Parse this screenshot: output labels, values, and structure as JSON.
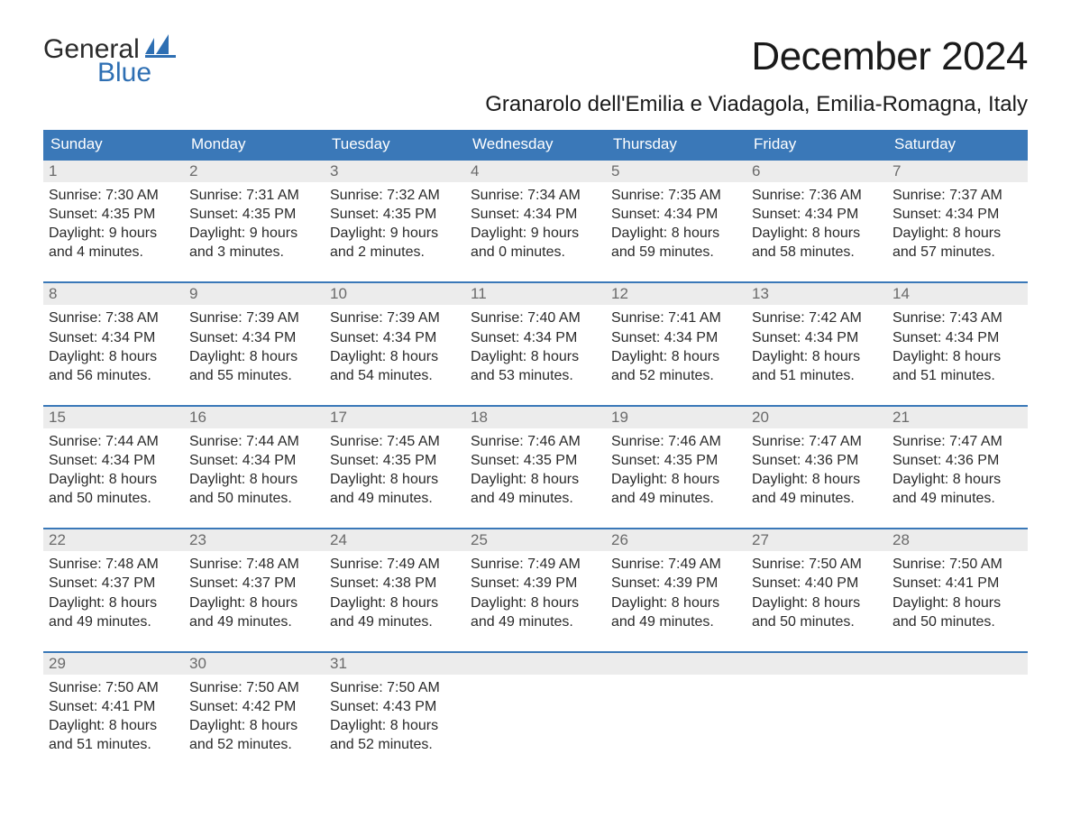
{
  "logo": {
    "word1": "General",
    "word2": "Blue",
    "accent_color": "#2e6fb3"
  },
  "title": "December 2024",
  "location": "Granarolo dell'Emilia e Viadagola, Emilia-Romagna, Italy",
  "colors": {
    "header_bg": "#3a78b8",
    "header_text": "#ffffff",
    "daynum_bg": "#ececec",
    "daynum_text": "#6a6a6a",
    "body_text": "#2a2a2a",
    "week_border": "#3a78b8"
  },
  "weekdays": [
    "Sunday",
    "Monday",
    "Tuesday",
    "Wednesday",
    "Thursday",
    "Friday",
    "Saturday"
  ],
  "weeks": [
    [
      {
        "n": "1",
        "sr": "Sunrise: 7:30 AM",
        "ss": "Sunset: 4:35 PM",
        "d1": "Daylight: 9 hours",
        "d2": "and 4 minutes."
      },
      {
        "n": "2",
        "sr": "Sunrise: 7:31 AM",
        "ss": "Sunset: 4:35 PM",
        "d1": "Daylight: 9 hours",
        "d2": "and 3 minutes."
      },
      {
        "n": "3",
        "sr": "Sunrise: 7:32 AM",
        "ss": "Sunset: 4:35 PM",
        "d1": "Daylight: 9 hours",
        "d2": "and 2 minutes."
      },
      {
        "n": "4",
        "sr": "Sunrise: 7:34 AM",
        "ss": "Sunset: 4:34 PM",
        "d1": "Daylight: 9 hours",
        "d2": "and 0 minutes."
      },
      {
        "n": "5",
        "sr": "Sunrise: 7:35 AM",
        "ss": "Sunset: 4:34 PM",
        "d1": "Daylight: 8 hours",
        "d2": "and 59 minutes."
      },
      {
        "n": "6",
        "sr": "Sunrise: 7:36 AM",
        "ss": "Sunset: 4:34 PM",
        "d1": "Daylight: 8 hours",
        "d2": "and 58 minutes."
      },
      {
        "n": "7",
        "sr": "Sunrise: 7:37 AM",
        "ss": "Sunset: 4:34 PM",
        "d1": "Daylight: 8 hours",
        "d2": "and 57 minutes."
      }
    ],
    [
      {
        "n": "8",
        "sr": "Sunrise: 7:38 AM",
        "ss": "Sunset: 4:34 PM",
        "d1": "Daylight: 8 hours",
        "d2": "and 56 minutes."
      },
      {
        "n": "9",
        "sr": "Sunrise: 7:39 AM",
        "ss": "Sunset: 4:34 PM",
        "d1": "Daylight: 8 hours",
        "d2": "and 55 minutes."
      },
      {
        "n": "10",
        "sr": "Sunrise: 7:39 AM",
        "ss": "Sunset: 4:34 PM",
        "d1": "Daylight: 8 hours",
        "d2": "and 54 minutes."
      },
      {
        "n": "11",
        "sr": "Sunrise: 7:40 AM",
        "ss": "Sunset: 4:34 PM",
        "d1": "Daylight: 8 hours",
        "d2": "and 53 minutes."
      },
      {
        "n": "12",
        "sr": "Sunrise: 7:41 AM",
        "ss": "Sunset: 4:34 PM",
        "d1": "Daylight: 8 hours",
        "d2": "and 52 minutes."
      },
      {
        "n": "13",
        "sr": "Sunrise: 7:42 AM",
        "ss": "Sunset: 4:34 PM",
        "d1": "Daylight: 8 hours",
        "d2": "and 51 minutes."
      },
      {
        "n": "14",
        "sr": "Sunrise: 7:43 AM",
        "ss": "Sunset: 4:34 PM",
        "d1": "Daylight: 8 hours",
        "d2": "and 51 minutes."
      }
    ],
    [
      {
        "n": "15",
        "sr": "Sunrise: 7:44 AM",
        "ss": "Sunset: 4:34 PM",
        "d1": "Daylight: 8 hours",
        "d2": "and 50 minutes."
      },
      {
        "n": "16",
        "sr": "Sunrise: 7:44 AM",
        "ss": "Sunset: 4:34 PM",
        "d1": "Daylight: 8 hours",
        "d2": "and 50 minutes."
      },
      {
        "n": "17",
        "sr": "Sunrise: 7:45 AM",
        "ss": "Sunset: 4:35 PM",
        "d1": "Daylight: 8 hours",
        "d2": "and 49 minutes."
      },
      {
        "n": "18",
        "sr": "Sunrise: 7:46 AM",
        "ss": "Sunset: 4:35 PM",
        "d1": "Daylight: 8 hours",
        "d2": "and 49 minutes."
      },
      {
        "n": "19",
        "sr": "Sunrise: 7:46 AM",
        "ss": "Sunset: 4:35 PM",
        "d1": "Daylight: 8 hours",
        "d2": "and 49 minutes."
      },
      {
        "n": "20",
        "sr": "Sunrise: 7:47 AM",
        "ss": "Sunset: 4:36 PM",
        "d1": "Daylight: 8 hours",
        "d2": "and 49 minutes."
      },
      {
        "n": "21",
        "sr": "Sunrise: 7:47 AM",
        "ss": "Sunset: 4:36 PM",
        "d1": "Daylight: 8 hours",
        "d2": "and 49 minutes."
      }
    ],
    [
      {
        "n": "22",
        "sr": "Sunrise: 7:48 AM",
        "ss": "Sunset: 4:37 PM",
        "d1": "Daylight: 8 hours",
        "d2": "and 49 minutes."
      },
      {
        "n": "23",
        "sr": "Sunrise: 7:48 AM",
        "ss": "Sunset: 4:37 PM",
        "d1": "Daylight: 8 hours",
        "d2": "and 49 minutes."
      },
      {
        "n": "24",
        "sr": "Sunrise: 7:49 AM",
        "ss": "Sunset: 4:38 PM",
        "d1": "Daylight: 8 hours",
        "d2": "and 49 minutes."
      },
      {
        "n": "25",
        "sr": "Sunrise: 7:49 AM",
        "ss": "Sunset: 4:39 PM",
        "d1": "Daylight: 8 hours",
        "d2": "and 49 minutes."
      },
      {
        "n": "26",
        "sr": "Sunrise: 7:49 AM",
        "ss": "Sunset: 4:39 PM",
        "d1": "Daylight: 8 hours",
        "d2": "and 49 minutes."
      },
      {
        "n": "27",
        "sr": "Sunrise: 7:50 AM",
        "ss": "Sunset: 4:40 PM",
        "d1": "Daylight: 8 hours",
        "d2": "and 50 minutes."
      },
      {
        "n": "28",
        "sr": "Sunrise: 7:50 AM",
        "ss": "Sunset: 4:41 PM",
        "d1": "Daylight: 8 hours",
        "d2": "and 50 minutes."
      }
    ],
    [
      {
        "n": "29",
        "sr": "Sunrise: 7:50 AM",
        "ss": "Sunset: 4:41 PM",
        "d1": "Daylight: 8 hours",
        "d2": "and 51 minutes."
      },
      {
        "n": "30",
        "sr": "Sunrise: 7:50 AM",
        "ss": "Sunset: 4:42 PM",
        "d1": "Daylight: 8 hours",
        "d2": "and 52 minutes."
      },
      {
        "n": "31",
        "sr": "Sunrise: 7:50 AM",
        "ss": "Sunset: 4:43 PM",
        "d1": "Daylight: 8 hours",
        "d2": "and 52 minutes."
      },
      null,
      null,
      null,
      null
    ]
  ]
}
